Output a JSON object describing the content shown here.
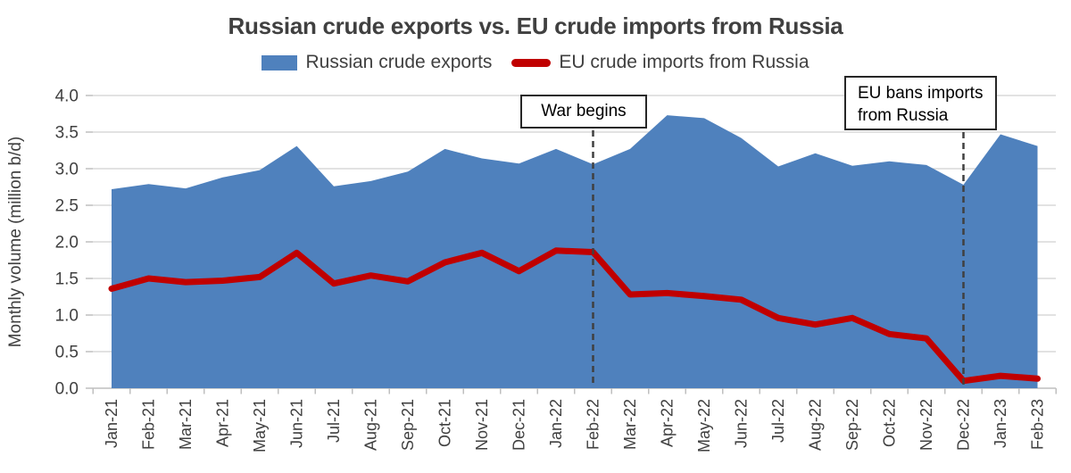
{
  "chart_data": {
    "type": "area",
    "title": "Russian crude exports vs. EU crude imports from Russia",
    "ylabel": "Monthly volume (million b/d)",
    "ylim": [
      0.0,
      4.0
    ],
    "ytick_step": 0.5,
    "grid": true,
    "legend_position": "top",
    "x_tick_rotation": 90,
    "categories": [
      "Jan-21",
      "Feb-21",
      "Mar-21",
      "Apr-21",
      "May-21",
      "Jun-21",
      "Jul-21",
      "Aug-21",
      "Sep-21",
      "Oct-21",
      "Nov-21",
      "Dec-21",
      "Jan-22",
      "Feb-22",
      "Mar-22",
      "Apr-22",
      "May-22",
      "Jun-22",
      "Jul-22",
      "Aug-22",
      "Sep-22",
      "Oct-22",
      "Nov-22",
      "Dec-22",
      "Jan-23",
      "Feb-23"
    ],
    "series": [
      {
        "name": "Russian crude exports",
        "type": "area",
        "color": "#4F81BD",
        "values": [
          2.72,
          2.79,
          2.73,
          2.88,
          2.98,
          3.31,
          2.76,
          2.83,
          2.96,
          3.27,
          3.14,
          3.07,
          3.27,
          3.06,
          3.27,
          3.73,
          3.69,
          3.42,
          3.03,
          3.21,
          3.04,
          3.1,
          3.05,
          2.78,
          3.47,
          3.31
        ]
      },
      {
        "name": "EU crude imports from Russia",
        "type": "line",
        "color": "#C00000",
        "values": [
          1.36,
          1.5,
          1.45,
          1.47,
          1.52,
          1.85,
          1.43,
          1.54,
          1.46,
          1.72,
          1.85,
          1.6,
          1.88,
          1.86,
          1.28,
          1.3,
          1.26,
          1.21,
          0.96,
          0.87,
          0.96,
          0.74,
          0.68,
          0.1,
          0.17,
          0.13
        ]
      }
    ],
    "annotations": [
      {
        "label": "War begins",
        "category": "Feb-22"
      },
      {
        "label": "EU bans imports from Russia",
        "category": "Dec-22"
      }
    ],
    "yticks": [
      "0.0",
      "0.5",
      "1.0",
      "1.5",
      "2.0",
      "2.5",
      "3.0",
      "3.5",
      "4.0"
    ]
  },
  "colors": {
    "area_fill": "#4F81BD",
    "line_stroke": "#C00000",
    "gridline": "#D9D9D9",
    "axis_line": "#BFBFBF",
    "text": "#404040",
    "annotation_line": "#404040",
    "annotation_border": "#262626"
  }
}
